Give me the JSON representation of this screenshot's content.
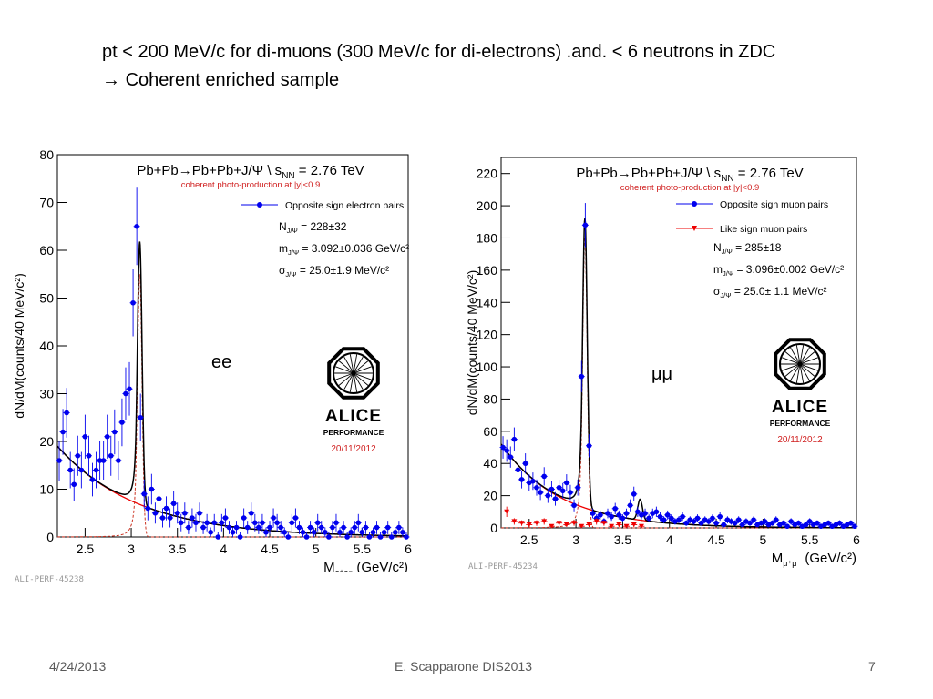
{
  "slide": {
    "line1": "pt < 200 MeV/c for di-muons (300 MeV/c for di-electrons) .and. < 6 neutrons in ZDC",
    "arrow": "→",
    "line2": "Coherent enriched sample",
    "footer_date": "4/24/2013",
    "footer_author": "E. Scapparone DIS2013",
    "page_number": "7"
  },
  "colors": {
    "data": "#0000ee",
    "fit": "#000000",
    "background": "#ee0000",
    "signal": "#cc3322"
  },
  "chart_data": [
    {
      "type": "scatter",
      "title": "Pb+Pb→Pb+Pb+J/Ψ \\ s",
      "title_sub": "NN",
      "title_tail": " = 2.76 TeV",
      "subtitle": "coherent photo-production at |y|<0.9",
      "ylabel": "dN/dM(counts/40 MeV/c²)",
      "xlabel": "M",
      "xlabel_sub": "e⁺e⁻",
      "xlabel_unit": " (GeV/c²)",
      "xlim": [
        2.2,
        6.0
      ],
      "ylim": [
        0,
        80
      ],
      "xticks": [
        2.5,
        3,
        3.5,
        4,
        4.5,
        5,
        5.5,
        6
      ],
      "yticks": [
        0,
        10,
        20,
        30,
        40,
        50,
        60,
        70,
        80
      ],
      "legend": [
        {
          "name": "Opposite sign electron pairs"
        }
      ],
      "stats": [
        {
          "sym": "N",
          "sub": "J/Ψ",
          "rest": " = 228±32"
        },
        {
          "sym": "m",
          "sub": "J/Ψ",
          "rest": " = 3.092±0.036 GeV/c²"
        },
        {
          "sym": "σ",
          "sub": "J/Ψ",
          "rest": " = 25.0±1.9 MeV/c²"
        }
      ],
      "channel_label": "ee",
      "logo_text": "ALICE",
      "performance_text": "PERFORMANCE",
      "date": "20/11/2012",
      "perf_id": "ALI-PERF-45238",
      "series": [
        {
          "name": "Opposite sign electron pairs",
          "x": [
            2.22,
            2.26,
            2.3,
            2.34,
            2.38,
            2.42,
            2.46,
            2.5,
            2.54,
            2.58,
            2.62,
            2.66,
            2.7,
            2.74,
            2.78,
            2.82,
            2.86,
            2.9,
            2.94,
            2.98,
            3.02,
            3.06,
            3.1,
            3.14,
            3.18,
            3.22,
            3.26,
            3.3,
            3.34,
            3.38,
            3.42,
            3.46,
            3.5,
            3.54,
            3.58,
            3.62,
            3.66,
            3.7,
            3.74,
            3.78,
            3.82,
            3.86,
            3.9,
            3.94,
            3.98,
            4.02,
            4.06,
            4.1,
            4.14,
            4.18,
            4.22,
            4.26,
            4.3,
            4.34,
            4.38,
            4.42,
            4.46,
            4.5,
            4.54,
            4.58,
            4.62,
            4.66,
            4.7,
            4.74,
            4.78,
            4.82,
            4.86,
            4.9,
            4.94,
            4.98,
            5.02,
            5.06,
            5.1,
            5.14,
            5.18,
            5.22,
            5.26,
            5.3,
            5.34,
            5.38,
            5.42,
            5.46,
            5.5,
            5.54,
            5.58,
            5.62,
            5.66,
            5.7,
            5.74,
            5.78,
            5.82,
            5.86,
            5.9,
            5.94,
            5.98
          ],
          "y": [
            16,
            22,
            26,
            14,
            11,
            17,
            14,
            21,
            17,
            12,
            14,
            16,
            16,
            21,
            17,
            22,
            16,
            24,
            30,
            31,
            49,
            65,
            25,
            9,
            6,
            10,
            5,
            8,
            4,
            6,
            4,
            7,
            5,
            3,
            5,
            2,
            4,
            3,
            5,
            2,
            3,
            1,
            3,
            0,
            3,
            4,
            2,
            1,
            2,
            0,
            4,
            2,
            5,
            3,
            2,
            3,
            1,
            2,
            4,
            3,
            2,
            1,
            0,
            3,
            4,
            2,
            1,
            0,
            2,
            1,
            3,
            2,
            1,
            0,
            2,
            3,
            1,
            2,
            0,
            1,
            2,
            3,
            1,
            2,
            0,
            1,
            2,
            0,
            1,
            2,
            0,
            1,
            2,
            1,
            0
          ],
          "err": [
            4.2,
            4.8,
            5.2,
            3.8,
            3.4,
            4.2,
            3.8,
            4.6,
            4.2,
            3.5,
            3.8,
            4.0,
            4.0,
            4.6,
            4.2,
            4.7,
            4.0,
            5.0,
            5.5,
            5.6,
            7.0,
            8.1,
            5.0,
            3.0,
            2.5,
            3.2,
            2.2,
            2.8,
            2.0,
            2.5,
            2.0,
            2.6,
            2.2,
            1.8,
            2.2,
            1.4,
            2.0,
            1.8,
            2.2,
            1.4,
            1.8,
            1.0,
            1.8,
            1.0,
            1.8,
            2.0,
            1.4,
            1.0,
            1.4,
            1.0,
            2.0,
            1.4,
            2.2,
            1.8,
            1.4,
            1.8,
            1.0,
            1.4,
            2.0,
            1.8,
            1.4,
            1.0,
            1.0,
            1.8,
            2.0,
            1.4,
            1.0,
            1.0,
            1.4,
            1.0,
            1.8,
            1.4,
            1.0,
            1.0,
            1.4,
            1.8,
            1.0,
            1.4,
            1.0,
            1.0,
            1.4,
            1.8,
            1.0,
            1.4,
            1.0,
            1.0,
            1.4,
            1.0,
            1.0,
            1.4,
            1.0,
            1.0,
            1.4,
            1.0,
            1.0
          ]
        }
      ],
      "fit": {
        "bkg_amp": 19,
        "bkg_slope": 1.15,
        "peak_mean": 3.092,
        "peak_sigma": 0.025,
        "peak_amp": 60,
        "tail_amp": 55
      }
    },
    {
      "type": "scatter",
      "title": "Pb+Pb→Pb+Pb+J/Ψ \\ s",
      "title_sub": "NN",
      "title_tail": " = 2.76 TeV",
      "subtitle": "coherent photo-production at |y|<0.9",
      "ylabel": "dN/dM(counts/40 MeV/c²)",
      "xlabel": "M",
      "xlabel_sub": "μ⁺μ⁻",
      "xlabel_unit": " (GeV/c²)",
      "xlim": [
        2.2,
        6.0
      ],
      "ylim": [
        0,
        230
      ],
      "xticks": [
        2.5,
        3,
        3.5,
        4,
        4.5,
        5,
        5.5,
        6
      ],
      "yticks": [
        0,
        20,
        40,
        60,
        80,
        100,
        120,
        140,
        160,
        180,
        200,
        220
      ],
      "legend": [
        {
          "name": "Opposite sign muon pairs"
        },
        {
          "name": "Like sign muon pairs"
        }
      ],
      "stats": [
        {
          "sym": "N",
          "sub": "J/Ψ",
          "rest": " = 285±18"
        },
        {
          "sym": "m",
          "sub": "J/Ψ",
          "rest": " = 3.096±0.002 GeV/c²"
        },
        {
          "sym": "σ",
          "sub": "J/Ψ",
          "rest": " = 25.0± 1.1 MeV/c²"
        }
      ],
      "channel_label": "μμ",
      "logo_text": "ALICE",
      "performance_text": "PERFORMANCE",
      "date": "20/11/2012",
      "perf_id": "ALI-PERF-45234",
      "series": [
        {
          "name": "Opposite sign muon pairs",
          "x": [
            2.22,
            2.26,
            2.3,
            2.34,
            2.38,
            2.42,
            2.46,
            2.5,
            2.54,
            2.58,
            2.62,
            2.66,
            2.7,
            2.74,
            2.78,
            2.82,
            2.86,
            2.9,
            2.94,
            2.98,
            3.02,
            3.06,
            3.1,
            3.14,
            3.18,
            3.22,
            3.26,
            3.3,
            3.34,
            3.38,
            3.42,
            3.46,
            3.5,
            3.54,
            3.58,
            3.62,
            3.66,
            3.7,
            3.74,
            3.78,
            3.82,
            3.86,
            3.9,
            3.94,
            3.98,
            4.02,
            4.06,
            4.1,
            4.14,
            4.18,
            4.22,
            4.26,
            4.3,
            4.34,
            4.38,
            4.42,
            4.46,
            4.5,
            4.54,
            4.58,
            4.62,
            4.66,
            4.7,
            4.74,
            4.78,
            4.82,
            4.86,
            4.9,
            4.94,
            4.98,
            5.02,
            5.06,
            5.1,
            5.14,
            5.18,
            5.22,
            5.26,
            5.3,
            5.34,
            5.38,
            5.42,
            5.46,
            5.5,
            5.54,
            5.58,
            5.62,
            5.66,
            5.7,
            5.74,
            5.78,
            5.82,
            5.86,
            5.9,
            5.94,
            5.98
          ],
          "y": [
            50,
            48,
            44,
            55,
            36,
            30,
            40,
            28,
            29,
            25,
            22,
            32,
            20,
            24,
            18,
            25,
            23,
            28,
            22,
            14,
            25,
            94,
            188,
            51,
            9,
            6,
            8,
            4,
            9,
            7,
            12,
            8,
            6,
            9,
            14,
            21,
            10,
            8,
            9,
            6,
            9,
            10,
            7,
            5,
            8,
            6,
            4,
            5,
            7,
            3,
            5,
            4,
            6,
            3,
            5,
            4,
            6,
            3,
            7,
            2,
            5,
            4,
            3,
            5,
            2,
            4,
            3,
            5,
            2,
            3,
            4,
            2,
            3,
            5,
            2,
            3,
            1,
            4,
            2,
            3,
            1,
            2,
            4,
            2,
            3,
            1,
            2,
            3,
            1,
            2,
            3,
            1,
            2,
            3,
            1
          ],
          "err": [
            7,
            7,
            6.6,
            7.4,
            6,
            5.5,
            6.3,
            5.3,
            5.4,
            5,
            4.7,
            5.7,
            4.5,
            4.9,
            4.2,
            5,
            4.8,
            5.3,
            4.7,
            3.7,
            5,
            9.7,
            13.7,
            7.1,
            3,
            2.4,
            2.8,
            2,
            3,
            2.6,
            3.5,
            2.8,
            2.4,
            3,
            3.7,
            4.6,
            3.2,
            2.8,
            3,
            2.4,
            3,
            3.2,
            2.6,
            2.2,
            2.8,
            2.4,
            2,
            2.2,
            2.6,
            1.7,
            2.2,
            2,
            2.4,
            1.7,
            2.2,
            2,
            2.4,
            1.7,
            2.6,
            1.4,
            2.2,
            2,
            1.7,
            2.2,
            1.4,
            2,
            1.7,
            2.2,
            1.4,
            1.7,
            2,
            1.4,
            1.7,
            2.2,
            1.4,
            1.7,
            1,
            2,
            1.4,
            1.7,
            1,
            1.4,
            2,
            1.4,
            1.7,
            1,
            1.4,
            1.7,
            1,
            1.4,
            1.7,
            1,
            1.4,
            1.7,
            1
          ]
        },
        {
          "name": "Like sign muon pairs",
          "x": [
            2.26,
            2.34,
            2.42,
            2.5,
            2.58,
            2.66,
            2.74,
            2.82,
            2.9,
            2.98,
            3.06,
            3.14,
            3.22,
            3.3,
            3.38,
            3.46,
            3.54,
            3.62,
            3.7
          ],
          "y": [
            10,
            4,
            3,
            2,
            3,
            4,
            1,
            3,
            2,
            3,
            1,
            2,
            4,
            3,
            1,
            2,
            1,
            2,
            1
          ],
          "err": [
            3.2,
            2,
            1.7,
            1.4,
            1.7,
            2,
            1,
            1.7,
            1.4,
            1.7,
            1,
            1.4,
            2,
            1.7,
            1,
            1.4,
            1,
            1.4,
            1
          ]
        }
      ],
      "fit": {
        "bkg_amp": 52,
        "bkg_slope": 1.6,
        "peak_mean": 3.096,
        "peak_sigma": 0.025,
        "peak_amp": 185,
        "tail_amp": 180,
        "psi2s_mean": 3.686,
        "psi2s_amp": 13
      }
    }
  ]
}
